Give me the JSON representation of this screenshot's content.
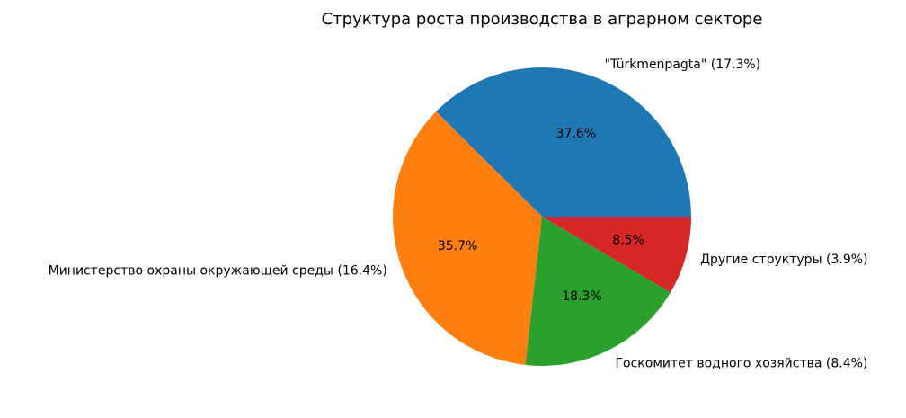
{
  "chart_data": {
    "type": "pie",
    "title": "Структура роста производства в аграрном секторе",
    "categories": [
      "\"Türkmenpagta\" (17.3%)",
      "Министерство охраны окружающей среды (16.4%)",
      "Госкомитет водного хозяйства (8.4%)",
      "Другие структуры (3.9%)"
    ],
    "values": [
      37.6,
      35.7,
      18.3,
      8.5
    ],
    "value_labels": [
      "37.6%",
      "35.7%",
      "18.3%",
      "8.5%"
    ],
    "colors": [
      "#1f77b4",
      "#ff7f0e",
      "#2ca02c",
      "#d62728"
    ],
    "legend": "none"
  }
}
